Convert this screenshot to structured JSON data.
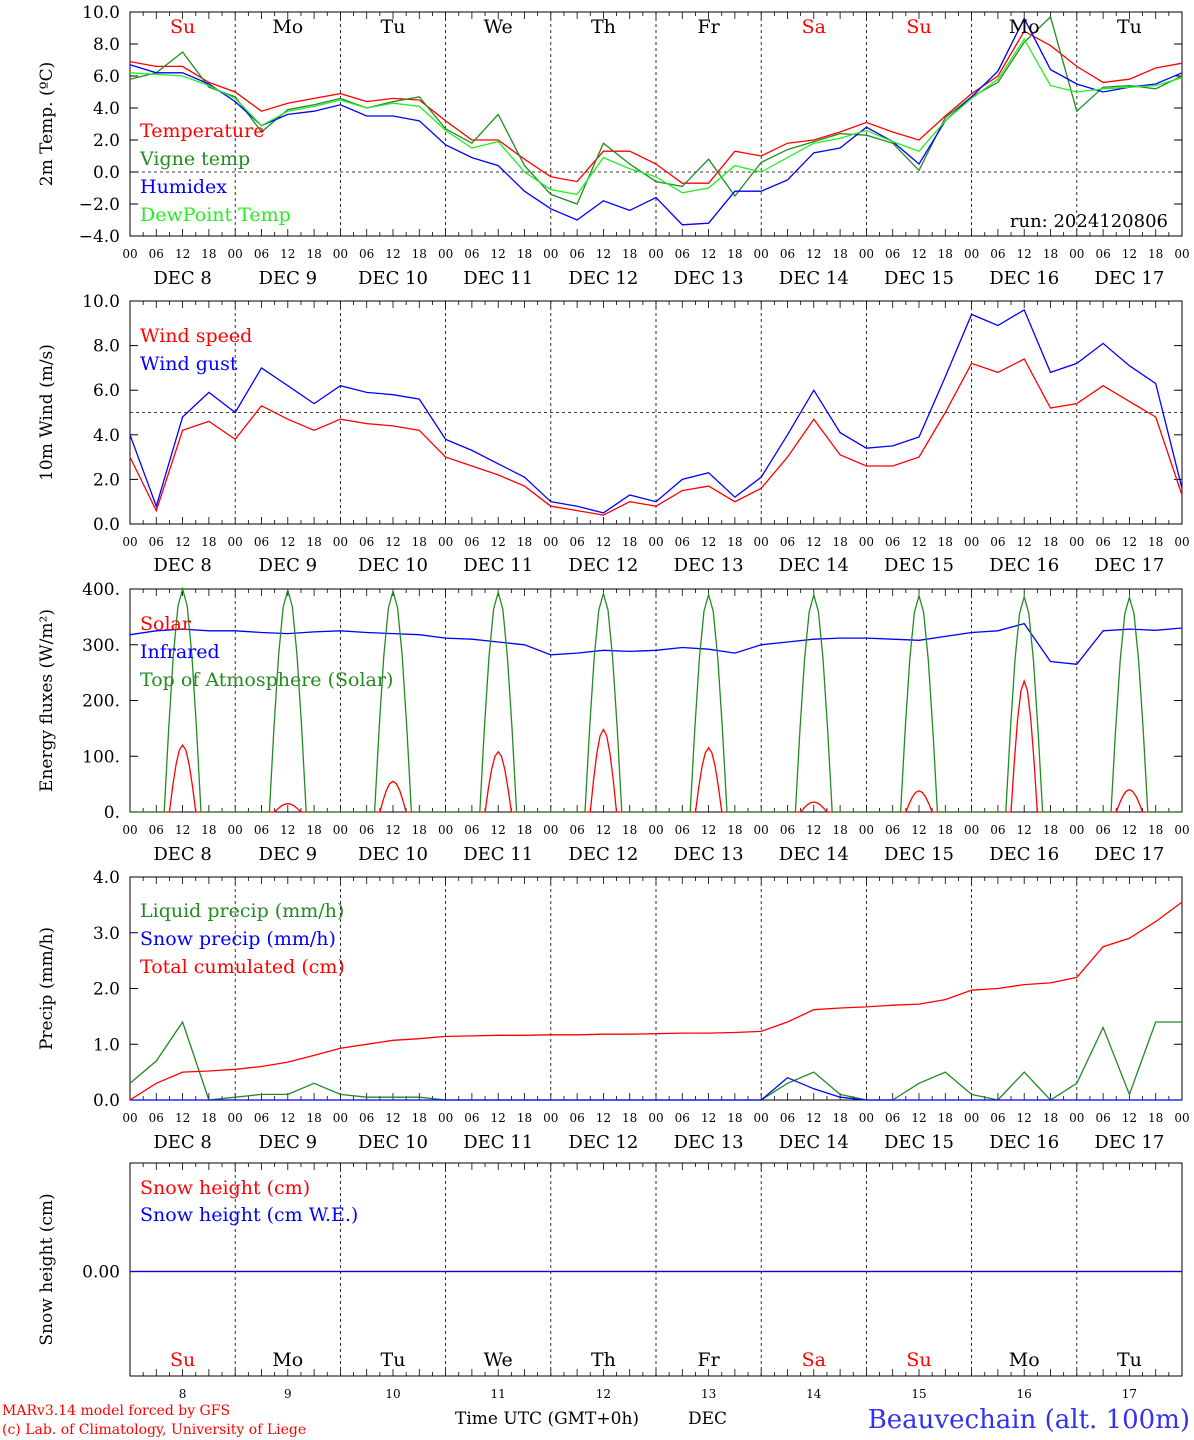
{
  "colors": {
    "red": "#ff0000",
    "green": "#228b22",
    "blue": "#0000ff",
    "lime": "#22ee22",
    "black": "#000000",
    "accent_blue": "#3333ee"
  },
  "x_axis": {
    "hour_labels": [
      "00",
      "06",
      "12",
      "18"
    ],
    "final_hour_label": "00",
    "date_labels": [
      "DEC  8",
      "DEC  9",
      "DEC 10",
      "DEC 11",
      "DEC 12",
      "DEC 13",
      "DEC 14",
      "DEC 15",
      "DEC 16",
      "DEC 17"
    ],
    "weekday_labels": [
      "Su",
      "Mo",
      "Tu",
      "We",
      "Th",
      "Fr",
      "Sa",
      "Su",
      "Mo",
      "Tu"
    ],
    "weekend_flags": [
      true,
      false,
      false,
      false,
      false,
      false,
      true,
      true,
      false,
      false
    ],
    "day_numbers": [
      "8",
      "9",
      "10",
      "11",
      "12",
      "13",
      "14",
      "15",
      "16",
      "17"
    ]
  },
  "footer": {
    "model_line": "MARv3.14 model forced by GFS",
    "copyright_line": "(c) Lab. of Climatology, University of Liege",
    "axis_title": "Time UTC (GMT+0h)",
    "month": "DEC",
    "station": "Beauvechain (alt. 100m)"
  },
  "chart_data": [
    {
      "type": "line",
      "ylabel": "2m Temp. (ºC)",
      "ylim": [
        -4,
        10
      ],
      "yticks": [
        "10.0",
        "8.0",
        "6.0",
        "4.0",
        "2.0",
        "0.0",
        "−2.0",
        "−4.0"
      ],
      "reference_line": 0,
      "run_label": "run: 2024120806",
      "x_hours": [
        0,
        6,
        12,
        18,
        24,
        30,
        36,
        42,
        48,
        54,
        60,
        66,
        72,
        78,
        84,
        90,
        96,
        102,
        108,
        114,
        120,
        126,
        132,
        138,
        144,
        150,
        156,
        162,
        168,
        174,
        180,
        186,
        192,
        198,
        204,
        210,
        216,
        222,
        228,
        234,
        240
      ],
      "series": [
        {
          "name": "Temperature",
          "color": "red",
          "values": [
            6.9,
            6.6,
            6.6,
            5.6,
            5.0,
            3.8,
            4.3,
            4.6,
            4.9,
            4.4,
            4.6,
            4.5,
            3.2,
            2.0,
            2.0,
            0.8,
            -0.3,
            -0.6,
            1.3,
            1.3,
            0.5,
            -0.7,
            -0.7,
            1.3,
            1.0,
            1.8,
            2.0,
            2.5,
            3.1,
            2.5,
            2.0,
            3.5,
            4.9,
            6.0,
            8.8,
            7.9,
            6.6,
            5.6,
            5.8,
            6.5,
            6.8
          ]
        },
        {
          "name": "Vigne temp",
          "color": "green",
          "values": [
            5.8,
            6.2,
            7.5,
            5.3,
            4.7,
            2.5,
            3.9,
            4.2,
            4.6,
            4.0,
            4.4,
            4.7,
            2.7,
            1.8,
            3.6,
            0.4,
            -1.4,
            -2.0,
            1.8,
            0.5,
            -0.6,
            -0.9,
            0.8,
            -1.5,
            0.6,
            1.4,
            1.9,
            2.4,
            2.3,
            1.8,
            0.1,
            3.4,
            4.7,
            5.6,
            8.1,
            9.7,
            3.8,
            5.3,
            5.4,
            5.2,
            6.0
          ]
        },
        {
          "name": "Humidex",
          "color": "blue",
          "values": [
            6.7,
            6.2,
            6.2,
            5.5,
            4.4,
            2.9,
            3.6,
            3.8,
            4.2,
            3.5,
            3.5,
            3.2,
            1.7,
            0.9,
            0.4,
            -1.2,
            -2.3,
            -3.0,
            -1.8,
            -2.4,
            -1.6,
            -3.3,
            -3.2,
            -1.2,
            -1.2,
            -0.5,
            1.2,
            1.5,
            2.8,
            1.9,
            0.5,
            3.2,
            4.7,
            6.3,
            9.6,
            6.4,
            5.5,
            5.0,
            5.3,
            5.5,
            6.2
          ]
        },
        {
          "name": "DewPoint Temp",
          "color": "lime",
          "values": [
            6.2,
            6.1,
            6.0,
            5.4,
            4.6,
            2.9,
            3.8,
            4.1,
            4.5,
            4.0,
            4.3,
            4.1,
            2.6,
            1.5,
            1.9,
            0.0,
            -1.1,
            -1.4,
            0.9,
            0.2,
            -0.3,
            -1.3,
            -1.0,
            0.4,
            0.0,
            0.9,
            1.8,
            2.1,
            2.6,
            1.9,
            1.3,
            3.2,
            4.6,
            5.8,
            8.3,
            5.4,
            5.0,
            5.2,
            5.3,
            5.4,
            5.9
          ]
        }
      ]
    },
    {
      "type": "line",
      "ylabel": "10m Wind (m/s)",
      "ylim": [
        0,
        10
      ],
      "yticks": [
        "10.0",
        "8.0",
        "6.0",
        "4.0",
        "2.0",
        "0.0"
      ],
      "reference_line": 5,
      "x_hours": [
        0,
        6,
        12,
        18,
        24,
        30,
        36,
        42,
        48,
        54,
        60,
        66,
        72,
        78,
        84,
        90,
        96,
        102,
        108,
        114,
        120,
        126,
        132,
        138,
        144,
        150,
        156,
        162,
        168,
        174,
        180,
        186,
        192,
        198,
        204,
        210,
        216,
        222,
        228,
        234,
        240
      ],
      "series": [
        {
          "name": "Wind speed",
          "color": "red",
          "values": [
            3.0,
            0.6,
            4.2,
            4.6,
            3.8,
            5.3,
            4.7,
            4.2,
            4.7,
            4.5,
            4.4,
            4.2,
            3.0,
            2.6,
            2.2,
            1.7,
            0.8,
            0.6,
            0.4,
            1.0,
            0.8,
            1.5,
            1.7,
            1.0,
            1.6,
            3.0,
            4.7,
            3.1,
            2.6,
            2.6,
            3.0,
            5.0,
            7.2,
            6.8,
            7.4,
            5.2,
            5.4,
            6.2,
            5.5,
            4.8,
            1.3
          ]
        },
        {
          "name": "Wind gust",
          "color": "blue",
          "values": [
            4.0,
            0.8,
            4.8,
            5.9,
            5.0,
            7.0,
            6.2,
            5.4,
            6.2,
            5.9,
            5.8,
            5.6,
            3.8,
            3.3,
            2.7,
            2.1,
            1.0,
            0.8,
            0.5,
            1.3,
            1.0,
            2.0,
            2.3,
            1.2,
            2.1,
            4.0,
            6.0,
            4.1,
            3.4,
            3.5,
            3.9,
            6.6,
            9.4,
            8.9,
            9.6,
            6.8,
            7.2,
            8.1,
            7.1,
            6.3,
            1.6
          ]
        }
      ]
    },
    {
      "type": "line",
      "ylabel": "Energy fluxes (W/m²)",
      "ylim": [
        0,
        400
      ],
      "yticks": [
        "400.",
        "300.",
        "200.",
        "100.",
        "0."
      ],
      "x_hours": [
        0,
        6,
        12,
        18,
        24,
        30,
        36,
        42,
        48,
        54,
        60,
        66,
        72,
        78,
        84,
        90,
        96,
        102,
        108,
        114,
        120,
        126,
        132,
        138,
        144,
        150,
        156,
        162,
        168,
        174,
        180,
        186,
        192,
        198,
        204,
        210,
        216,
        222,
        228,
        234,
        240
      ],
      "series": [
        {
          "name": "Solar",
          "color": "red",
          "daily_peaks": [
            120,
            15,
            55,
            108,
            148,
            115,
            18,
            38,
            235,
            40
          ]
        },
        {
          "name": "Infrared",
          "color": "blue",
          "values": [
            318,
            325,
            328,
            325,
            325,
            322,
            320,
            323,
            325,
            322,
            320,
            318,
            312,
            310,
            305,
            300,
            282,
            285,
            290,
            288,
            290,
            295,
            292,
            285,
            300,
            305,
            310,
            312,
            312,
            310,
            308,
            315,
            322,
            325,
            338,
            270,
            265,
            325,
            328,
            326,
            330
          ]
        },
        {
          "name": "Top of Atmosphere (Solar)",
          "color": "green",
          "daily_peaks": [
            400,
            398,
            396,
            394,
            392,
            390,
            389,
            388,
            386,
            385
          ]
        }
      ]
    },
    {
      "type": "line",
      "ylabel": "Precip (mm/h)",
      "ylim": [
        0,
        4
      ],
      "yticks": [
        "4.0",
        "3.0",
        "2.0",
        "1.0",
        "0.0"
      ],
      "x_hours": [
        0,
        6,
        12,
        18,
        24,
        30,
        36,
        42,
        48,
        54,
        60,
        66,
        72,
        78,
        84,
        90,
        96,
        102,
        108,
        114,
        120,
        126,
        132,
        138,
        144,
        150,
        156,
        162,
        168,
        174,
        180,
        186,
        192,
        198,
        204,
        210,
        216,
        222,
        228,
        234,
        240
      ],
      "series": [
        {
          "name": "Liquid precip (mm/h)",
          "color": "green",
          "values": [
            0.3,
            0.7,
            1.4,
            0.0,
            0.05,
            0.1,
            0.1,
            0.3,
            0.1,
            0.05,
            0.05,
            0.05,
            0.0,
            0.0,
            0.0,
            0.0,
            0.0,
            0.0,
            0.0,
            0.0,
            0.0,
            0.0,
            0.0,
            0.0,
            0.0,
            0.3,
            0.5,
            0.1,
            0.0,
            0.0,
            0.3,
            0.5,
            0.1,
            0.0,
            0.5,
            0.0,
            0.3,
            1.3,
            0.1,
            1.4,
            1.4
          ]
        },
        {
          "name": "Snow precip (mm/h)",
          "color": "blue",
          "values": [
            0,
            0,
            0,
            0,
            0,
            0,
            0,
            0,
            0,
            0,
            0,
            0,
            0,
            0,
            0,
            0,
            0,
            0,
            0,
            0,
            0,
            0,
            0,
            0,
            0,
            0.4,
            0.2,
            0.05,
            0,
            0,
            0,
            0,
            0,
            0,
            0,
            0,
            0,
            0,
            0,
            0,
            0
          ]
        },
        {
          "name": "Total cumulated (cm)",
          "color": "red",
          "values": [
            0.0,
            0.3,
            0.5,
            0.52,
            0.55,
            0.6,
            0.68,
            0.8,
            0.93,
            1.0,
            1.07,
            1.1,
            1.14,
            1.15,
            1.16,
            1.16,
            1.17,
            1.17,
            1.18,
            1.18,
            1.19,
            1.2,
            1.2,
            1.21,
            1.23,
            1.4,
            1.62,
            1.65,
            1.67,
            1.7,
            1.72,
            1.8,
            1.97,
            2.0,
            2.07,
            2.1,
            2.2,
            2.75,
            2.9,
            3.2,
            3.55
          ]
        }
      ]
    },
    {
      "type": "line",
      "ylabel": "Snow height (cm)",
      "yticks": [
        "0.00"
      ],
      "x_hours": [
        0,
        240
      ],
      "series": [
        {
          "name": "Snow height (cm)",
          "color": "red",
          "values": [
            0,
            0
          ]
        },
        {
          "name": "Snow height (cm W.E.)",
          "color": "blue",
          "values": [
            0,
            0
          ]
        }
      ]
    }
  ]
}
